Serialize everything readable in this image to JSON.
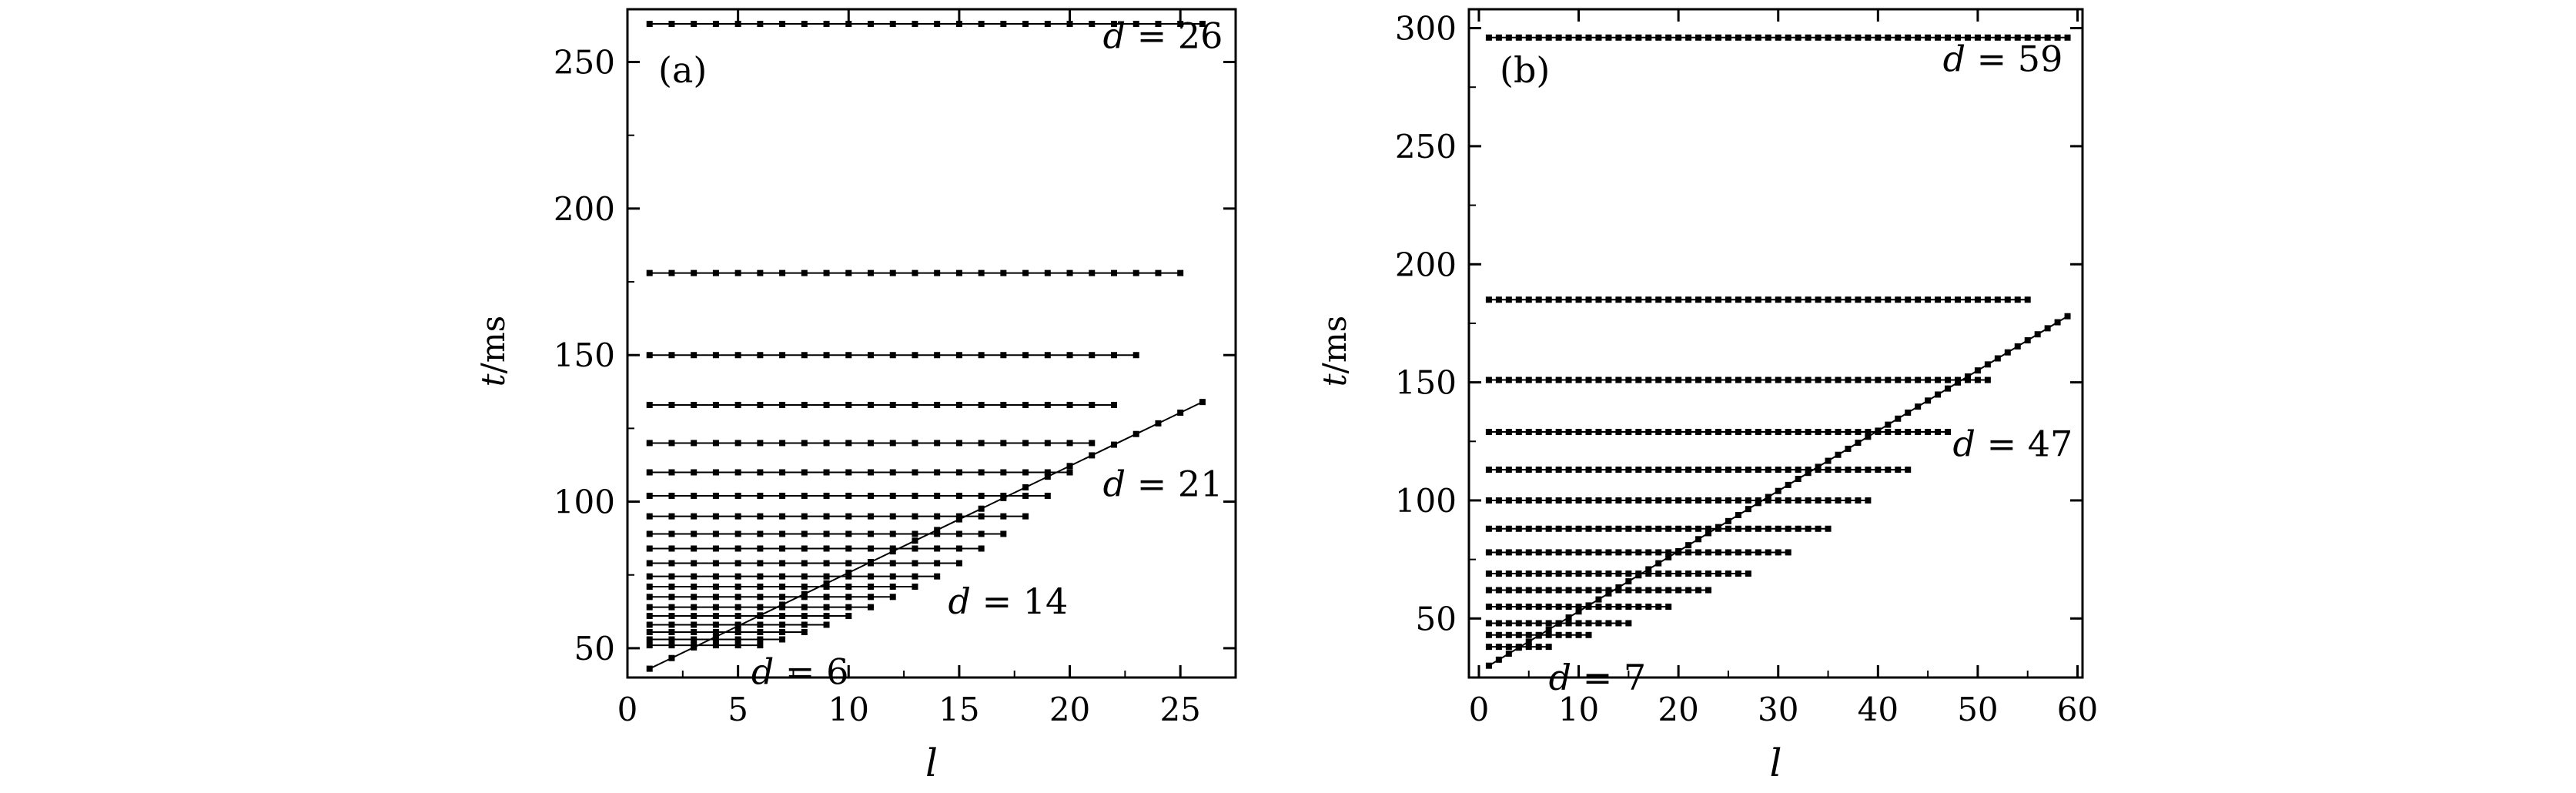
{
  "chart_data": [
    {
      "panel": "(a)",
      "type": "line",
      "xlabel_var": "l",
      "ylabel_var": "t",
      "ylabel_unit": "/ms",
      "xlim": [
        0,
        27.5
      ],
      "ylim": [
        40,
        268
      ],
      "xticks": [
        0,
        5,
        10,
        15,
        20,
        25
      ],
      "yticks": [
        50,
        100,
        150,
        200,
        250
      ],
      "annotations": [
        {
          "var": "d",
          "rest": " = 26",
          "x": 21.5,
          "y": 259
        },
        {
          "var": "d",
          "rest": " = 21",
          "x": 21.5,
          "y": 106
        },
        {
          "var": "d",
          "rest": " = 14",
          "x": 14.5,
          "y": 66
        },
        {
          "var": "d",
          "rest": " = 6",
          "x": 5.6,
          "y": 42
        }
      ],
      "horizontal_series": [
        {
          "d": 6,
          "t": 51,
          "l_max": 6
        },
        {
          "d": 7,
          "t": 53,
          "l_max": 7
        },
        {
          "d": 8,
          "t": 55.5,
          "l_max": 8
        },
        {
          "d": 9,
          "t": 58,
          "l_max": 9
        },
        {
          "d": 10,
          "t": 61,
          "l_max": 10
        },
        {
          "d": 11,
          "t": 64,
          "l_max": 11
        },
        {
          "d": 12,
          "t": 67.5,
          "l_max": 12
        },
        {
          "d": 13,
          "t": 71,
          "l_max": 13
        },
        {
          "d": 14,
          "t": 74.5,
          "l_max": 14
        },
        {
          "d": 15,
          "t": 79,
          "l_max": 15
        },
        {
          "d": 16,
          "t": 84,
          "l_max": 16
        },
        {
          "d": 17,
          "t": 89,
          "l_max": 17
        },
        {
          "d": 18,
          "t": 95,
          "l_max": 18
        },
        {
          "d": 19,
          "t": 102,
          "l_max": 19
        },
        {
          "d": 20,
          "t": 110,
          "l_max": 20
        },
        {
          "d": 21,
          "t": 120,
          "l_max": 21
        },
        {
          "d": 22,
          "t": 133,
          "l_max": 22
        },
        {
          "d": 23,
          "t": 150,
          "l_max": 23
        },
        {
          "d": 25,
          "t": 178,
          "l_max": 25
        },
        {
          "d": 26,
          "t": 263,
          "l_max": 26
        }
      ],
      "diagonal_series": {
        "l": [
          1,
          26
        ],
        "t": [
          43,
          134
        ],
        "step": 1
      }
    },
    {
      "panel": "(b)",
      "type": "line",
      "xlabel_var": "l",
      "ylabel_var": "t",
      "ylabel_unit": "/ms",
      "xlim": [
        -1,
        60.5
      ],
      "ylim": [
        25,
        308
      ],
      "xticks": [
        0,
        10,
        20,
        30,
        40,
        50,
        60
      ],
      "yticks": [
        50,
        100,
        150,
        200,
        250,
        300
      ],
      "annotations": [
        {
          "var": "d",
          "rest": " = 59",
          "x": 46.5,
          "y": 287
        },
        {
          "var": "d",
          "rest": " = 47",
          "x": 47.5,
          "y": 124
        },
        {
          "var": "d",
          "rest": " = 7",
          "x": 7,
          "y": 25
        }
      ],
      "horizontal_series": [
        {
          "d": 7,
          "t": 38,
          "l_max": 7
        },
        {
          "d": 11,
          "t": 43,
          "l_max": 11
        },
        {
          "d": 15,
          "t": 48,
          "l_max": 15
        },
        {
          "d": 19,
          "t": 55,
          "l_max": 19
        },
        {
          "d": 23,
          "t": 62,
          "l_max": 23
        },
        {
          "d": 27,
          "t": 69,
          "l_max": 27
        },
        {
          "d": 31,
          "t": 78,
          "l_max": 31
        },
        {
          "d": 35,
          "t": 88,
          "l_max": 35
        },
        {
          "d": 39,
          "t": 100,
          "l_max": 39
        },
        {
          "d": 43,
          "t": 113,
          "l_max": 43
        },
        {
          "d": 47,
          "t": 129,
          "l_max": 47
        },
        {
          "d": 51,
          "t": 151,
          "l_max": 51
        },
        {
          "d": 55,
          "t": 185,
          "l_max": 55
        },
        {
          "d": 59,
          "t": 296,
          "l_max": 59
        }
      ],
      "diagonal_series": {
        "l": [
          1,
          59
        ],
        "t": [
          30,
          178
        ],
        "step": 1
      }
    }
  ]
}
